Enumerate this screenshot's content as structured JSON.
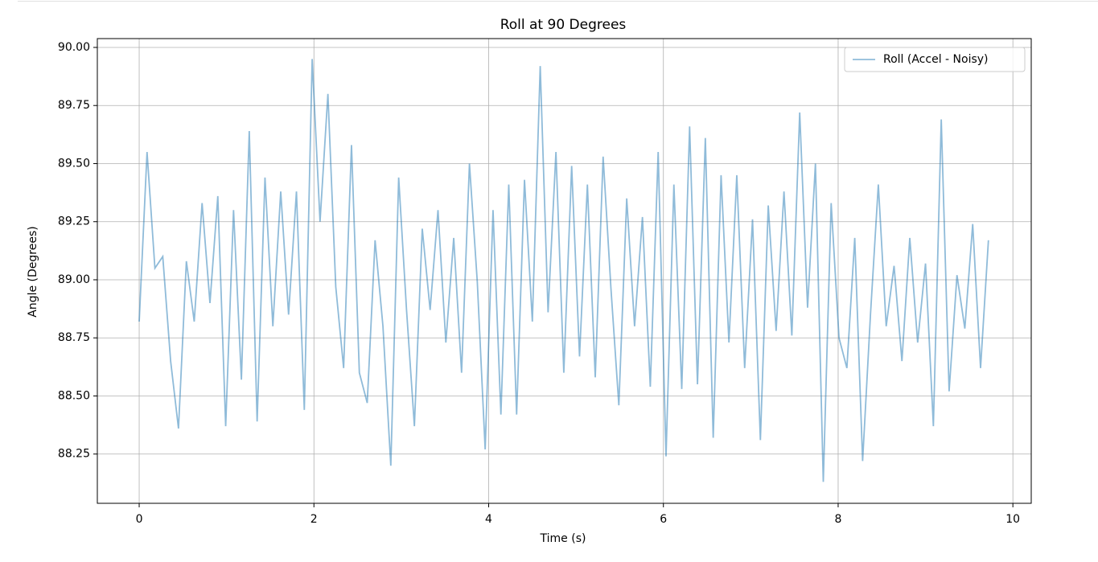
{
  "chart_data": {
    "type": "line",
    "title": "Roll at 90 Degrees",
    "x_label": "Time (s)",
    "y_label": "Angle (Degrees)",
    "x": [
      0,
      0.09,
      0.18,
      0.27,
      0.36,
      0.45,
      0.54,
      0.63,
      0.72,
      0.81,
      0.9,
      0.99,
      1.08,
      1.17,
      1.26,
      1.35,
      1.44,
      1.53,
      1.62,
      1.71,
      1.8,
      1.89,
      1.98,
      2.07,
      2.16,
      2.25,
      2.34,
      2.43,
      2.52,
      2.61,
      2.7,
      2.79,
      2.88,
      2.97,
      3.06,
      3.15,
      3.24,
      3.33,
      3.42,
      3.51,
      3.6,
      3.69,
      3.78,
      3.87,
      3.96,
      4.05,
      4.14,
      4.23,
      4.32,
      4.41,
      4.5,
      4.59,
      4.68,
      4.77,
      4.86,
      4.95,
      5.04,
      5.13,
      5.22,
      5.31,
      5.4,
      5.49,
      5.58,
      5.67,
      5.76,
      5.85,
      5.94,
      6.03,
      6.12,
      6.21,
      6.3,
      6.39,
      6.48,
      6.57,
      6.66,
      6.75,
      6.84,
      6.93,
      7.02,
      7.11,
      7.2,
      7.29,
      7.38,
      7.47,
      7.56,
      7.65,
      7.74,
      7.83,
      7.92,
      8.01,
      8.1,
      8.19,
      8.28,
      8.37,
      8.46,
      8.55,
      8.64,
      8.73,
      8.82,
      8.91,
      9.0,
      9.09,
      9.18,
      9.27,
      9.36,
      9.45,
      9.54,
      9.63,
      9.72
    ],
    "series": [
      {
        "name": "Roll (Accel - Noisy)",
        "color": "#1f77b4",
        "values": [
          88.82,
          89.55,
          89.05,
          89.1,
          88.65,
          88.36,
          89.08,
          88.82,
          89.33,
          88.9,
          89.36,
          88.37,
          89.3,
          88.57,
          89.64,
          88.39,
          89.44,
          88.8,
          89.38,
          88.85,
          89.38,
          88.44,
          89.95,
          89.25,
          89.8,
          88.97,
          88.62,
          89.58,
          88.6,
          88.47,
          89.17,
          88.8,
          88.2,
          89.44,
          88.87,
          88.37,
          89.22,
          88.87,
          89.3,
          88.73,
          89.18,
          88.6,
          89.5,
          88.99,
          88.27,
          89.3,
          88.42,
          89.41,
          88.42,
          89.43,
          88.82,
          89.92,
          88.86,
          89.55,
          88.6,
          89.49,
          88.67,
          89.41,
          88.58,
          89.53,
          88.96,
          88.46,
          89.35,
          88.8,
          89.27,
          88.54,
          89.55,
          88.24,
          89.41,
          88.53,
          89.66,
          88.55,
          89.61,
          88.32,
          89.45,
          88.73,
          89.45,
          88.62,
          89.26,
          88.31,
          89.32,
          88.78,
          89.38,
          88.76,
          89.72,
          88.88,
          89.5,
          88.13,
          89.33,
          88.75,
          88.62,
          89.18,
          88.22,
          88.85,
          89.41,
          88.8,
          89.06,
          88.65,
          89.18,
          88.73,
          89.07,
          88.37,
          89.69,
          88.52,
          89.02,
          88.79,
          89.24,
          88.62,
          89.17
        ]
      }
    ],
    "xlim": [
      -0.479,
      10.21
    ],
    "xticks": [
      0,
      2,
      4,
      6,
      8,
      10
    ],
    "ylim": [
      88.038,
      90.038
    ],
    "yticks": [
      {
        "value": 88.25,
        "label": "88.25"
      },
      {
        "value": 88.5,
        "label": "88.50"
      },
      {
        "value": 88.75,
        "label": "88.75"
      },
      {
        "value": 89,
        "label": "89.00"
      },
      {
        "value": 89.25,
        "label": "89.25"
      },
      {
        "value": 89.5,
        "label": "89.50"
      },
      {
        "value": 89.75,
        "label": "89.75"
      },
      {
        "value": 90,
        "label": "90.00"
      }
    ],
    "grid": true,
    "legend": "upper right",
    "line_alpha": 0.5
  }
}
